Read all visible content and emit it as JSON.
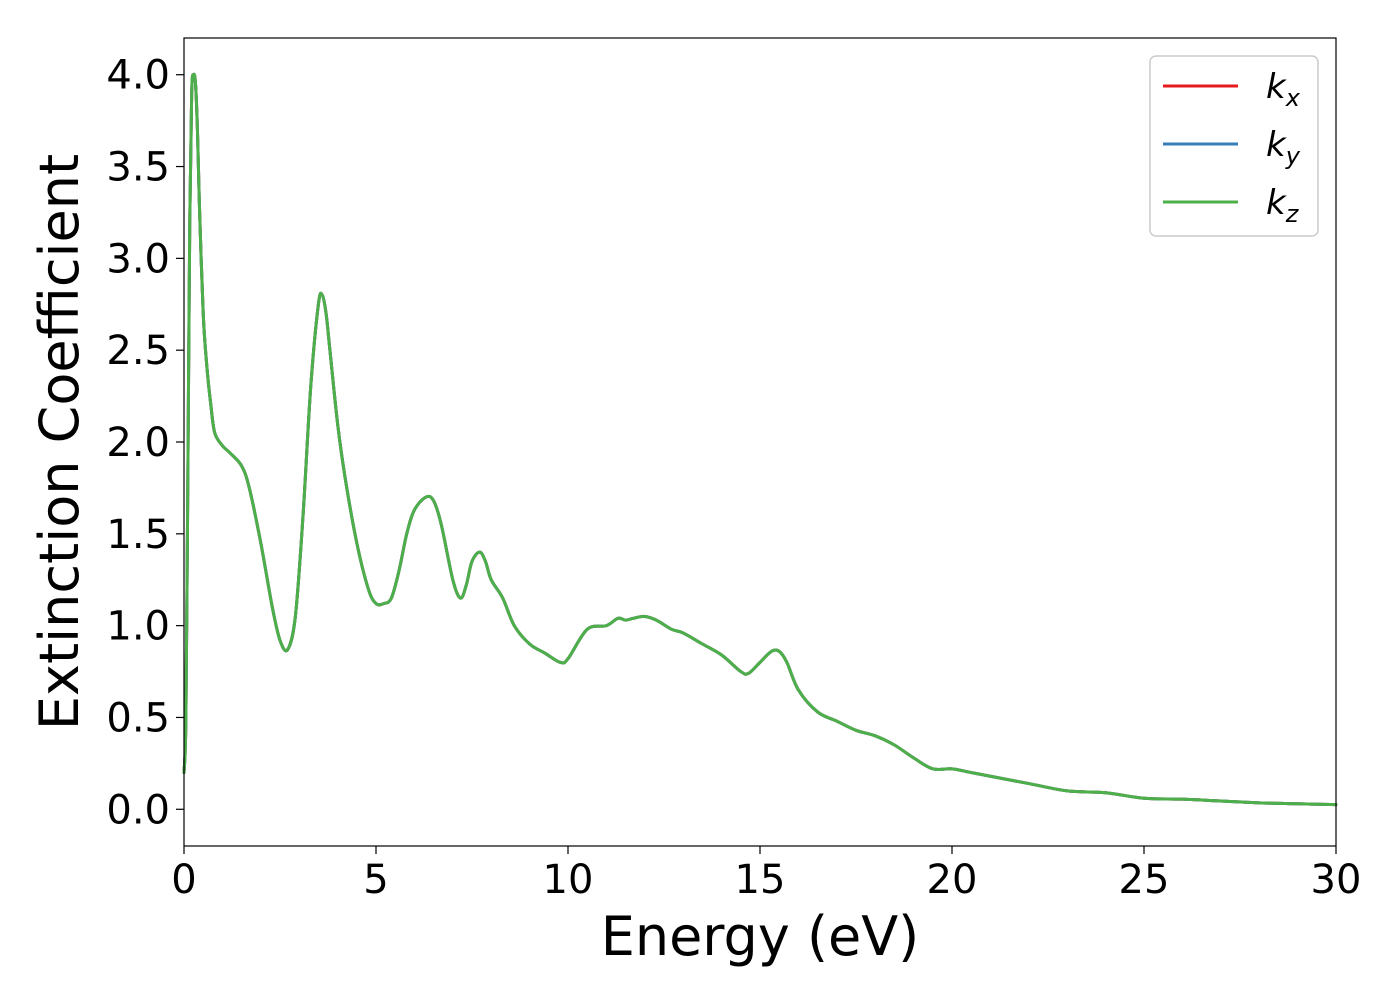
{
  "chart_data": {
    "type": "line",
    "title": "",
    "xlabel": "Energy (eV)",
    "ylabel": "Extinction Coefficient",
    "xlim": [
      0,
      30
    ],
    "ylim": [
      -0.2,
      4.2
    ],
    "xticks": [
      0,
      5,
      10,
      15,
      20,
      25,
      30
    ],
    "xtick_labels": [
      "0",
      "5",
      "10",
      "15",
      "20",
      "25",
      "30"
    ],
    "yticks": [
      0.0,
      0.5,
      1.0,
      1.5,
      2.0,
      2.5,
      3.0,
      3.5,
      4.0
    ],
    "ytick_labels": [
      "0.0",
      "0.5",
      "1.0",
      "1.5",
      "2.0",
      "2.5",
      "3.0",
      "3.5",
      "4.0"
    ],
    "grid": false,
    "legend_position": "top-right",
    "series": [
      {
        "name": "k_x",
        "base": "k",
        "sub": "x",
        "color": "#e41a1c",
        "x": [
          0.0,
          0.05,
          0.1,
          0.15,
          0.2,
          0.25,
          0.3,
          0.35,
          0.4,
          0.5,
          0.6,
          0.7,
          0.8,
          1.0,
          1.2,
          1.5,
          1.7,
          2.0,
          2.3,
          2.5,
          2.7,
          2.9,
          3.1,
          3.3,
          3.5,
          3.6,
          3.7,
          3.8,
          4.0,
          4.2,
          4.5,
          4.8,
          5.0,
          5.2,
          5.4,
          5.6,
          5.8,
          6.0,
          6.3,
          6.5,
          6.7,
          7.0,
          7.2,
          7.35,
          7.5,
          7.7,
          7.85,
          8.0,
          8.3,
          8.6,
          9.0,
          9.4,
          9.8,
          10.0,
          10.5,
          11.0,
          11.3,
          11.5,
          11.7,
          12.0,
          12.3,
          12.7,
          13.0,
          13.5,
          14.0,
          14.5,
          14.7,
          15.0,
          15.3,
          15.5,
          15.7,
          16.0,
          16.5,
          17.0,
          17.5,
          18.0,
          18.5,
          19.0,
          19.5,
          20.0,
          20.5,
          21.0,
          22.0,
          23.0,
          24.0,
          25.0,
          26.0,
          27.0,
          28.0,
          29.0,
          30.0
        ],
        "y": [
          0.2,
          0.5,
          1.8,
          3.2,
          3.9,
          4.0,
          3.95,
          3.7,
          3.3,
          2.7,
          2.4,
          2.2,
          2.05,
          1.98,
          1.94,
          1.87,
          1.75,
          1.45,
          1.1,
          0.92,
          0.87,
          1.05,
          1.6,
          2.3,
          2.75,
          2.8,
          2.7,
          2.5,
          2.1,
          1.8,
          1.45,
          1.2,
          1.12,
          1.12,
          1.15,
          1.3,
          1.5,
          1.63,
          1.7,
          1.68,
          1.55,
          1.25,
          1.15,
          1.22,
          1.35,
          1.4,
          1.35,
          1.25,
          1.15,
          1.0,
          0.9,
          0.85,
          0.8,
          0.82,
          0.98,
          1.0,
          1.04,
          1.03,
          1.04,
          1.05,
          1.03,
          0.98,
          0.96,
          0.9,
          0.84,
          0.75,
          0.74,
          0.8,
          0.86,
          0.86,
          0.8,
          0.65,
          0.53,
          0.48,
          0.43,
          0.4,
          0.35,
          0.28,
          0.22,
          0.22,
          0.2,
          0.18,
          0.14,
          0.1,
          0.09,
          0.06,
          0.055,
          0.045,
          0.035,
          0.03,
          0.025
        ]
      },
      {
        "name": "k_y",
        "base": "k",
        "sub": "y",
        "color": "#377eb8",
        "x": [
          0.0,
          0.05,
          0.1,
          0.15,
          0.2,
          0.25,
          0.3,
          0.35,
          0.4,
          0.5,
          0.6,
          0.7,
          0.8,
          1.0,
          1.2,
          1.5,
          1.7,
          2.0,
          2.3,
          2.5,
          2.7,
          2.9,
          3.1,
          3.3,
          3.5,
          3.6,
          3.7,
          3.8,
          4.0,
          4.2,
          4.5,
          4.8,
          5.0,
          5.2,
          5.4,
          5.6,
          5.8,
          6.0,
          6.3,
          6.5,
          6.7,
          7.0,
          7.2,
          7.35,
          7.5,
          7.7,
          7.85,
          8.0,
          8.3,
          8.6,
          9.0,
          9.4,
          9.8,
          10.0,
          10.5,
          11.0,
          11.3,
          11.5,
          11.7,
          12.0,
          12.3,
          12.7,
          13.0,
          13.5,
          14.0,
          14.5,
          14.7,
          15.0,
          15.3,
          15.5,
          15.7,
          16.0,
          16.5,
          17.0,
          17.5,
          18.0,
          18.5,
          19.0,
          19.5,
          20.0,
          20.5,
          21.0,
          22.0,
          23.0,
          24.0,
          25.0,
          26.0,
          27.0,
          28.0,
          29.0,
          30.0
        ],
        "y": [
          0.2,
          0.5,
          1.8,
          3.2,
          3.9,
          4.0,
          3.95,
          3.7,
          3.3,
          2.7,
          2.4,
          2.2,
          2.05,
          1.98,
          1.94,
          1.87,
          1.75,
          1.45,
          1.1,
          0.92,
          0.87,
          1.05,
          1.6,
          2.3,
          2.75,
          2.8,
          2.7,
          2.5,
          2.1,
          1.8,
          1.45,
          1.2,
          1.12,
          1.12,
          1.15,
          1.3,
          1.5,
          1.63,
          1.7,
          1.68,
          1.55,
          1.25,
          1.15,
          1.22,
          1.35,
          1.4,
          1.35,
          1.25,
          1.15,
          1.0,
          0.9,
          0.85,
          0.8,
          0.82,
          0.98,
          1.0,
          1.04,
          1.03,
          1.04,
          1.05,
          1.03,
          0.98,
          0.96,
          0.9,
          0.84,
          0.75,
          0.74,
          0.8,
          0.86,
          0.86,
          0.8,
          0.65,
          0.53,
          0.48,
          0.43,
          0.4,
          0.35,
          0.28,
          0.22,
          0.22,
          0.2,
          0.18,
          0.14,
          0.1,
          0.09,
          0.06,
          0.055,
          0.045,
          0.035,
          0.03,
          0.025
        ]
      },
      {
        "name": "k_z",
        "base": "k",
        "sub": "z",
        "color": "#4daf4a",
        "x": [
          0.0,
          0.05,
          0.1,
          0.15,
          0.2,
          0.25,
          0.3,
          0.35,
          0.4,
          0.5,
          0.6,
          0.7,
          0.8,
          1.0,
          1.2,
          1.5,
          1.7,
          2.0,
          2.3,
          2.5,
          2.7,
          2.9,
          3.1,
          3.3,
          3.5,
          3.6,
          3.7,
          3.8,
          4.0,
          4.2,
          4.5,
          4.8,
          5.0,
          5.2,
          5.4,
          5.6,
          5.8,
          6.0,
          6.3,
          6.5,
          6.7,
          7.0,
          7.2,
          7.35,
          7.5,
          7.7,
          7.85,
          8.0,
          8.3,
          8.6,
          9.0,
          9.4,
          9.8,
          10.0,
          10.5,
          11.0,
          11.3,
          11.5,
          11.7,
          12.0,
          12.3,
          12.7,
          13.0,
          13.5,
          14.0,
          14.5,
          14.7,
          15.0,
          15.3,
          15.5,
          15.7,
          16.0,
          16.5,
          17.0,
          17.5,
          18.0,
          18.5,
          19.0,
          19.5,
          20.0,
          20.5,
          21.0,
          22.0,
          23.0,
          24.0,
          25.0,
          26.0,
          27.0,
          28.0,
          29.0,
          30.0
        ],
        "y": [
          0.2,
          0.5,
          1.8,
          3.2,
          3.9,
          4.0,
          3.95,
          3.7,
          3.3,
          2.7,
          2.4,
          2.2,
          2.05,
          1.98,
          1.94,
          1.87,
          1.75,
          1.45,
          1.1,
          0.92,
          0.87,
          1.05,
          1.6,
          2.3,
          2.75,
          2.8,
          2.7,
          2.5,
          2.1,
          1.8,
          1.45,
          1.2,
          1.12,
          1.12,
          1.15,
          1.3,
          1.5,
          1.63,
          1.7,
          1.68,
          1.55,
          1.25,
          1.15,
          1.22,
          1.35,
          1.4,
          1.35,
          1.25,
          1.15,
          1.0,
          0.9,
          0.85,
          0.8,
          0.82,
          0.98,
          1.0,
          1.04,
          1.03,
          1.04,
          1.05,
          1.03,
          0.98,
          0.96,
          0.9,
          0.84,
          0.75,
          0.74,
          0.8,
          0.86,
          0.86,
          0.8,
          0.65,
          0.53,
          0.48,
          0.43,
          0.4,
          0.35,
          0.28,
          0.22,
          0.22,
          0.2,
          0.18,
          0.14,
          0.1,
          0.09,
          0.06,
          0.055,
          0.045,
          0.035,
          0.03,
          0.025
        ]
      }
    ]
  }
}
